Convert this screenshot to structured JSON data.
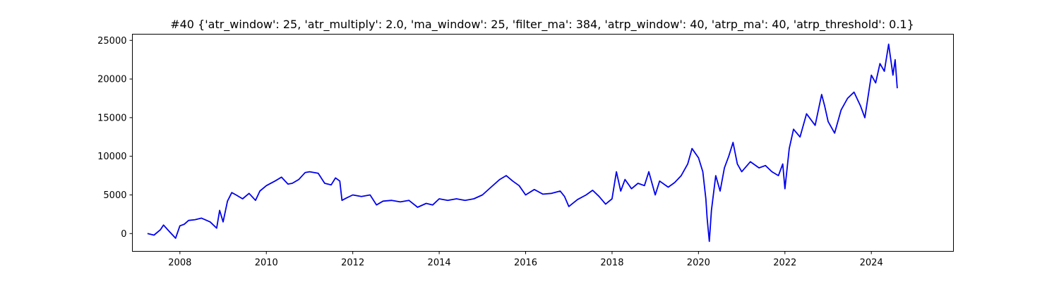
{
  "chart_data": {
    "type": "line",
    "title": "#40 {'atr_window': 25, 'atr_multiply': 2.0, 'ma_window': 25, 'filter_ma': 384, 'atrp_window': 40, 'atrp_ma': 40, 'atrp_threshold': 0.1}",
    "xlabel": "",
    "ylabel": "",
    "xlim": [
      2006.9,
      2025.9
    ],
    "ylim": [
      -2300,
      25800
    ],
    "x_ticks": [
      2008,
      2010,
      2012,
      2014,
      2016,
      2018,
      2020,
      2022,
      2024
    ],
    "x_tick_labels": [
      "2008",
      "2010",
      "2012",
      "2014",
      "2016",
      "2018",
      "2020",
      "2022",
      "2024"
    ],
    "y_ticks": [
      0,
      5000,
      10000,
      15000,
      20000,
      25000
    ],
    "y_tick_labels": [
      "0",
      "5000",
      "10000",
      "15000",
      "20000",
      "25000"
    ],
    "grid": false,
    "legend": "none",
    "series": [
      {
        "color": "#0000ee",
        "x": [
          2007.25,
          2007.4,
          2007.55,
          2007.62,
          2007.75,
          2007.9,
          2008.0,
          2008.1,
          2008.2,
          2008.35,
          2008.5,
          2008.7,
          2008.85,
          2008.92,
          2009.0,
          2009.1,
          2009.2,
          2009.3,
          2009.45,
          2009.6,
          2009.75,
          2009.85,
          2010.0,
          2010.2,
          2010.35,
          2010.5,
          2010.6,
          2010.75,
          2010.9,
          2011.0,
          2011.2,
          2011.35,
          2011.5,
          2011.6,
          2011.7,
          2011.75,
          2011.85,
          2012.0,
          2012.2,
          2012.4,
          2012.55,
          2012.7,
          2012.9,
          2013.1,
          2013.3,
          2013.5,
          2013.7,
          2013.85,
          2014.0,
          2014.2,
          2014.4,
          2014.6,
          2014.8,
          2015.0,
          2015.2,
          2015.4,
          2015.55,
          2015.7,
          2015.85,
          2016.0,
          2016.2,
          2016.4,
          2016.6,
          2016.8,
          2016.9,
          2017.0,
          2017.2,
          2017.4,
          2017.55,
          2017.7,
          2017.85,
          2018.0,
          2018.1,
          2018.2,
          2018.3,
          2018.45,
          2018.6,
          2018.75,
          2018.85,
          2019.0,
          2019.1,
          2019.3,
          2019.45,
          2019.6,
          2019.75,
          2019.85,
          2020.0,
          2020.1,
          2020.17,
          2020.2,
          2020.25,
          2020.3,
          2020.4,
          2020.5,
          2020.6,
          2020.7,
          2020.8,
          2020.9,
          2021.0,
          2021.2,
          2021.4,
          2021.55,
          2021.7,
          2021.85,
          2021.95,
          2022.0,
          2022.1,
          2022.2,
          2022.35,
          2022.5,
          2022.7,
          2022.85,
          2022.92,
          2023.0,
          2023.15,
          2023.3,
          2023.45,
          2023.6,
          2023.75,
          2023.85,
          2024.0,
          2024.1,
          2024.2,
          2024.3,
          2024.4,
          2024.5,
          2024.55,
          2024.6
        ],
        "y": [
          0,
          -200,
          500,
          1100,
          300,
          -600,
          1000,
          1200,
          1700,
          1800,
          2000,
          1500,
          700,
          3000,
          1500,
          4200,
          5300,
          5000,
          4500,
          5200,
          4300,
          5500,
          6200,
          6800,
          7300,
          6400,
          6500,
          7000,
          7900,
          8000,
          7800,
          6500,
          6300,
          7200,
          6800,
          4300,
          4600,
          5000,
          4800,
          5000,
          3700,
          4200,
          4300,
          4100,
          4300,
          3400,
          3900,
          3700,
          4500,
          4300,
          4500,
          4300,
          4500,
          5000,
          6000,
          7000,
          7500,
          6800,
          6200,
          5000,
          5700,
          5100,
          5200,
          5500,
          4800,
          3500,
          4400,
          5000,
          5600,
          4800,
          3800,
          4500,
          8000,
          5500,
          7000,
          5800,
          6500,
          6200,
          8000,
          5000,
          6800,
          6000,
          6600,
          7500,
          9000,
          11000,
          9800,
          8000,
          4500,
          2000,
          -1000,
          3000,
          7500,
          5500,
          8500,
          10000,
          11800,
          9000,
          8000,
          9300,
          8500,
          8800,
          8000,
          7500,
          9000,
          5800,
          11000,
          13500,
          12500,
          15500,
          14000,
          18000,
          16500,
          14500,
          13000,
          16000,
          17500,
          18300,
          16500,
          15000,
          20500,
          19500,
          22000,
          21000,
          24500,
          20500,
          22500,
          18800
        ]
      }
    ]
  }
}
